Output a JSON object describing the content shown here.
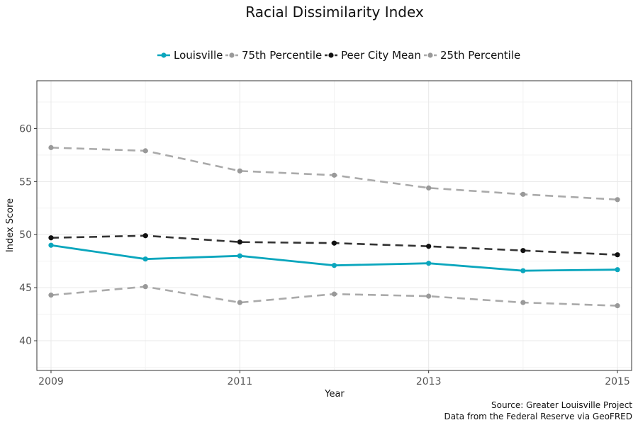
{
  "chart_data": {
    "type": "line",
    "title": "Racial Dissimilarity Index",
    "xlabel": "Year",
    "ylabel": "Index Score",
    "x": [
      2009,
      2010,
      2011,
      2012,
      2013,
      2014,
      2015
    ],
    "xlim": [
      2008.85,
      2015.15
    ],
    "ylim": [
      37.2,
      64.5
    ],
    "x_ticks": [
      2009,
      2011,
      2013,
      2015
    ],
    "y_ticks": [
      40,
      45,
      50,
      55,
      60
    ],
    "grid": true,
    "legend_position": "top",
    "series": [
      {
        "name": "Louisville",
        "color": "#0aa6bd",
        "dashed": false,
        "values": [
          49.0,
          47.7,
          48.0,
          47.1,
          47.3,
          46.6,
          46.7
        ]
      },
      {
        "name": "75th Percentile",
        "color": "#999999",
        "line_color": "#aaaaaa",
        "dashed": true,
        "values": [
          58.2,
          57.9,
          56.0,
          55.6,
          54.4,
          53.8,
          53.3
        ]
      },
      {
        "name": "Peer City Mean",
        "color": "#111111",
        "line_color": "#333333",
        "dashed": true,
        "values": [
          49.7,
          49.9,
          49.3,
          49.2,
          48.9,
          48.5,
          48.1
        ]
      },
      {
        "name": "25th Percentile",
        "color": "#999999",
        "line_color": "#aaaaaa",
        "dashed": true,
        "values": [
          44.3,
          45.1,
          43.6,
          44.4,
          44.2,
          43.6,
          43.3
        ]
      }
    ],
    "legend_order": [
      0,
      1,
      2,
      3
    ],
    "caption": [
      "Source: Greater Louisville Project",
      "Data from the Federal Reserve via GeoFRED"
    ]
  }
}
